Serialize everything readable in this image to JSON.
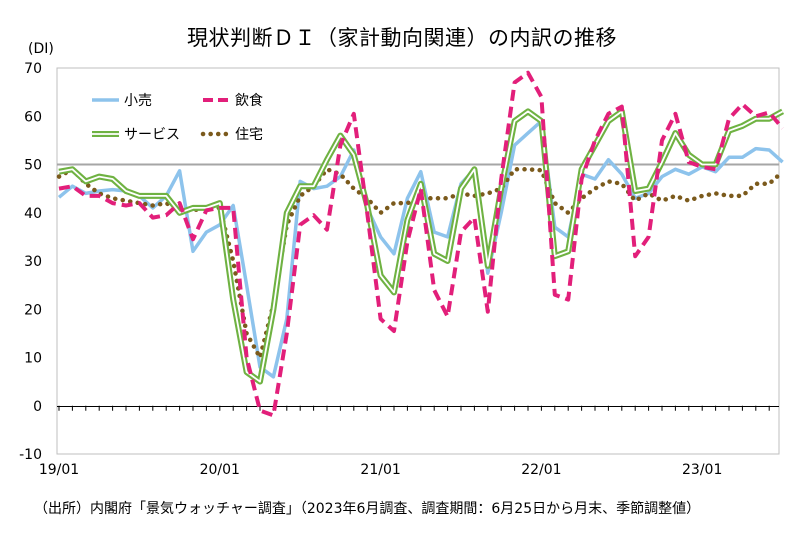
{
  "title": "現状判断ＤＩ（家計動向関連）の内訳の推移",
  "source": "（出所）内閣府「景気ウォッチャー調査」（2023年6月調査、調査期間：6月25日から月末、季節調整値）",
  "chart_data": {
    "type": "line",
    "title": "現状判断ＤＩ（家計動向関連）の内訳の推移",
    "ylabel": "(DI)",
    "ylim": [
      -10,
      70
    ],
    "yticks": [
      -10,
      0,
      10,
      20,
      30,
      40,
      50,
      60,
      70
    ],
    "x_start": "2019-01",
    "x_end": "2023-06",
    "xticks": [
      "19/01",
      "20/01",
      "21/01",
      "22/01",
      "23/01"
    ],
    "reference_line": 50,
    "grid": false,
    "legend_position": "top-left",
    "series": [
      {
        "name": "小売",
        "color": "#8DC3EC",
        "style": "solid",
        "values": [
          43.2,
          45.5,
          44,
          44.5,
          44.8,
          44.5,
          43.5,
          41,
          43.5,
          48.7,
          32,
          36,
          37.5,
          41.5,
          25,
          8,
          6,
          18,
          46.5,
          45,
          45.5,
          47.5,
          53,
          41,
          35,
          31.5,
          43,
          48.5,
          36,
          35,
          46,
          49,
          27.5,
          40,
          54,
          56.5,
          59,
          37,
          35,
          48,
          47,
          51,
          48,
          43,
          44,
          47.5,
          49,
          48,
          49.5,
          48.5,
          51.5,
          51.5,
          53.3,
          53,
          50.5
        ]
      },
      {
        "name": "飲食",
        "color": "#E21F7A",
        "style": "dashed",
        "values": [
          45,
          45.5,
          43.5,
          43.5,
          42,
          41.5,
          42,
          39,
          39.5,
          42,
          34.5,
          40.5,
          41,
          41,
          10,
          -1,
          -2,
          15,
          37.5,
          39.5,
          36.5,
          54,
          60.5,
          40,
          18,
          15.5,
          34,
          45,
          24,
          18.5,
          36,
          39,
          19.5,
          47,
          67,
          69,
          64,
          23,
          22,
          47,
          55,
          60.5,
          62,
          31,
          35,
          55,
          60.5,
          50.5,
          49.5,
          49,
          59.5,
          62.5,
          60,
          60.8,
          57.5
        ]
      },
      {
        "name": "サービス",
        "color": "#6FB242",
        "style": "double",
        "values": [
          48.5,
          49,
          46.5,
          47.5,
          47,
          44.5,
          43.5,
          43.5,
          43.5,
          40,
          41,
          41,
          42,
          22,
          7,
          5,
          20,
          40,
          45.5,
          45.5,
          51,
          56,
          52,
          41.5,
          27,
          23.5,
          38.5,
          46,
          31.5,
          30,
          45,
          49,
          29,
          45,
          59,
          61,
          59,
          31,
          32,
          49,
          54,
          59,
          61,
          44.5,
          45,
          50.5,
          56.5,
          52,
          50,
          50,
          57,
          58,
          59.5,
          59.5,
          61
        ]
      },
      {
        "name": "住宅",
        "color": "#7B5A1C",
        "style": "dotted",
        "values": [
          47.5,
          49,
          46,
          44,
          43,
          42.5,
          42,
          41.5,
          42,
          40.5,
          40.5,
          41,
          41,
          30,
          15,
          10,
          21,
          37.5,
          43.5,
          45.5,
          49,
          48,
          45,
          43,
          40,
          42,
          42,
          43,
          43,
          43,
          44,
          43.5,
          44,
          45,
          49,
          49,
          48.8,
          42,
          40,
          43,
          45,
          46.5,
          46,
          42.5,
          44,
          42.5,
          43.5,
          42.5,
          43.5,
          44,
          43.5,
          43.5,
          46,
          46,
          48.5
        ]
      }
    ]
  }
}
